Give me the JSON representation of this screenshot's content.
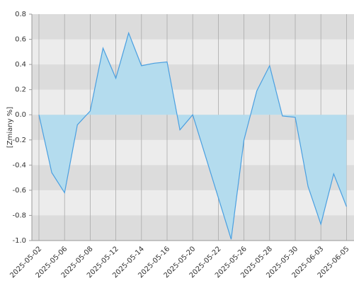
{
  "chart_data": {
    "type": "area",
    "y_label": "[Zmiany %]",
    "categories": [
      "2025-05-02",
      null,
      "2025-05-06",
      null,
      "2025-05-08",
      null,
      "2025-05-12",
      null,
      "2025-05-14",
      null,
      "2025-05-16",
      null,
      "2025-05-20",
      null,
      "2025-05-22",
      null,
      "2025-05-26",
      null,
      "2025-05-28",
      null,
      "2025-05-30",
      null,
      "2025-06-03",
      null,
      "2025-06-05"
    ],
    "values": [
      0.0,
      -0.46,
      -0.62,
      -0.08,
      0.03,
      0.53,
      0.29,
      0.65,
      0.39,
      0.41,
      0.42,
      -0.12,
      0.0,
      -0.33,
      -0.66,
      -0.99,
      -0.2,
      0.19,
      0.39,
      -0.01,
      -0.02,
      -0.57,
      -0.87,
      -0.47,
      -0.73
    ],
    "color": "#4a9fe0",
    "fill": "#b4dcee",
    "ylim": [
      -1.0,
      0.8
    ],
    "yticks": [
      {
        "value": -1.0,
        "label": "-1.0"
      },
      -0.8,
      -0.6,
      -0.4,
      -0.2,
      {
        "value": 0,
        "label": "0.0"
      },
      0.2,
      0.4,
      0.6,
      0.8
    ],
    "grid": true
  }
}
